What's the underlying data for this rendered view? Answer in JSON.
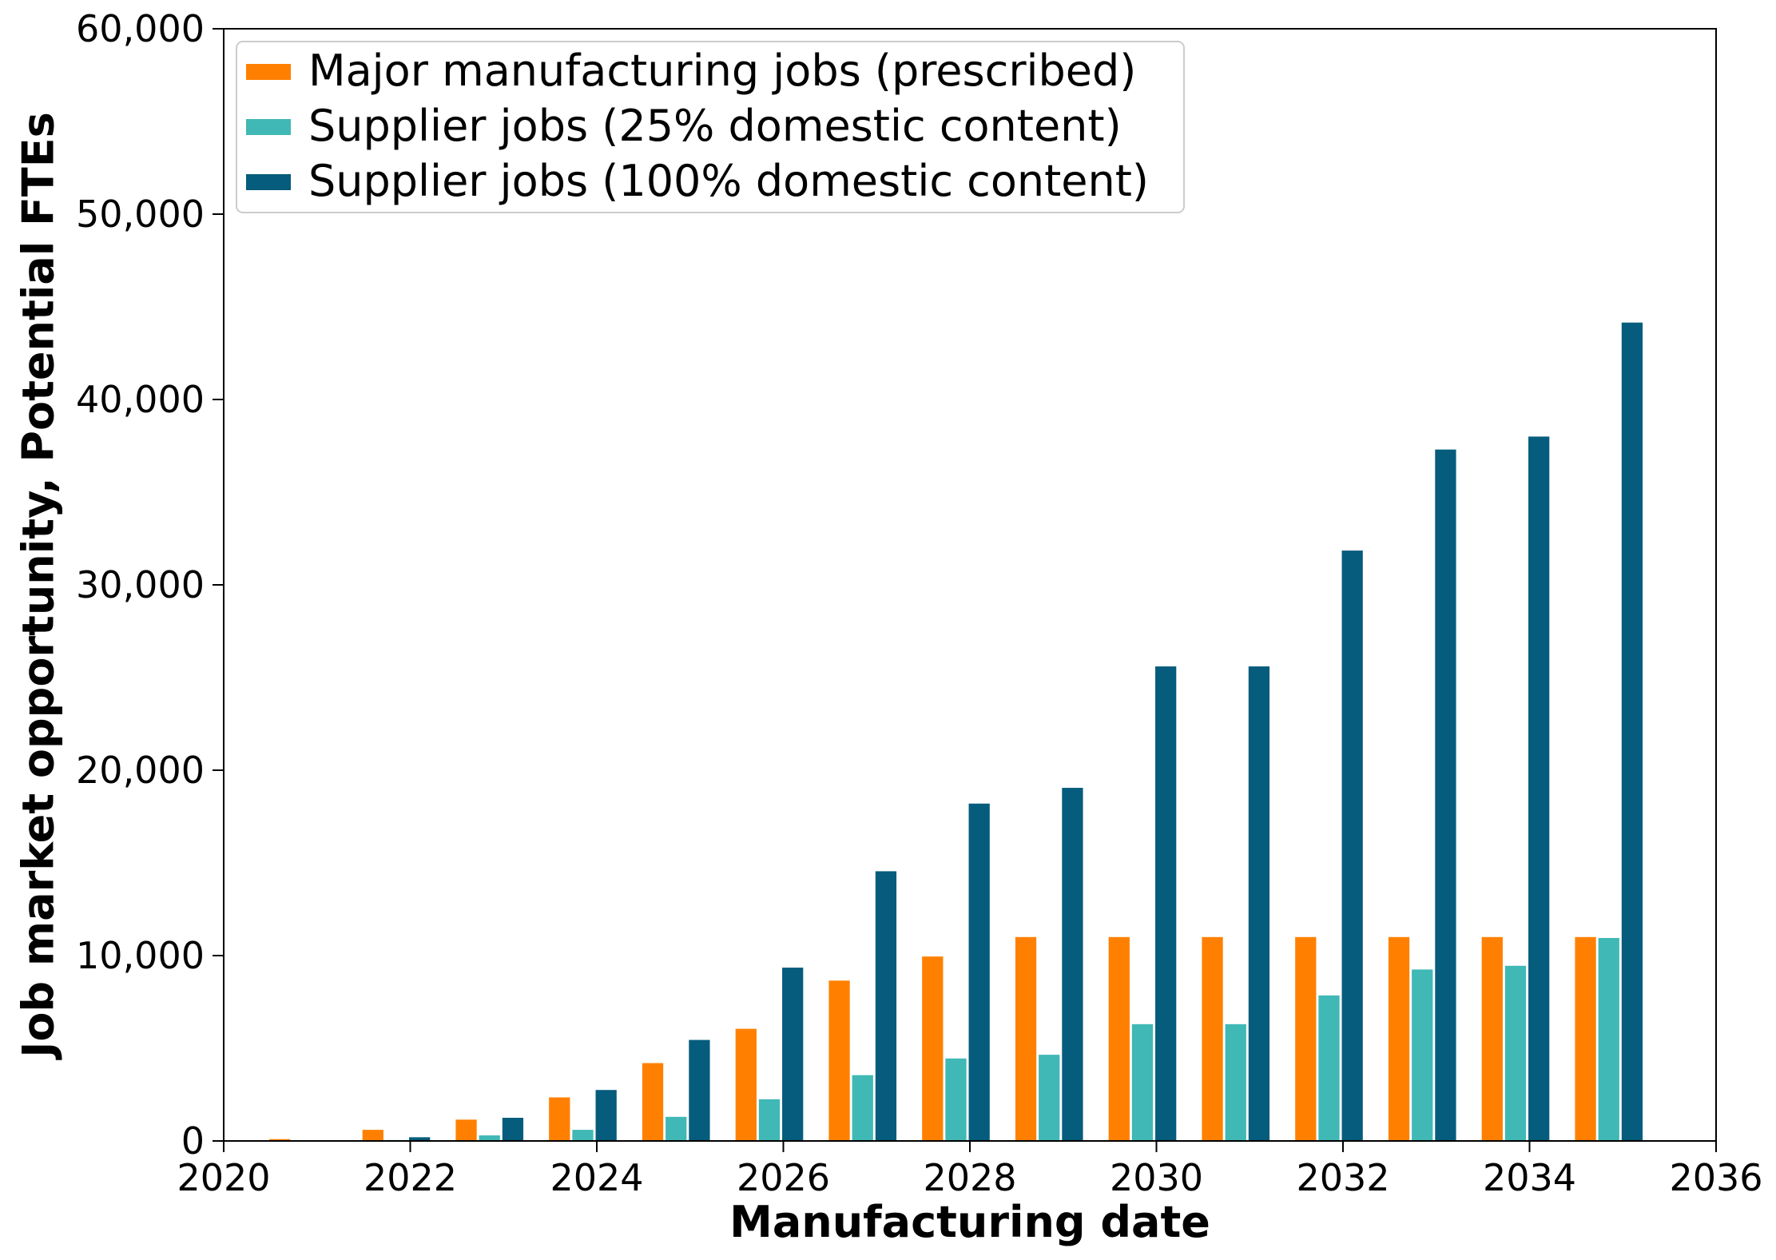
{
  "chart_data": {
    "type": "bar",
    "title": "",
    "xlabel": "Manufacturing date",
    "ylabel": "Job market opportunity, Potential FTEs",
    "xlim": [
      2020,
      2036
    ],
    "ylim": [
      0,
      60000
    ],
    "x_ticks": [
      2020,
      2022,
      2024,
      2026,
      2028,
      2030,
      2032,
      2034,
      2036
    ],
    "x_tick_labels": [
      "2020",
      "2022",
      "2024",
      "2026",
      "2028",
      "2030",
      "2032",
      "2034",
      "2036"
    ],
    "y_ticks": [
      0,
      10000,
      20000,
      30000,
      40000,
      50000,
      60000
    ],
    "y_tick_labels": [
      "0",
      "10,000",
      "20,000",
      "30,000",
      "40,000",
      "50,000",
      "60,000"
    ],
    "grid": false,
    "legend_position": "top-left",
    "x": [
      2021,
      2022,
      2023,
      2024,
      2025,
      2026,
      2027,
      2028,
      2029,
      2030,
      2031,
      2032,
      2033,
      2034,
      2035
    ],
    "series": [
      {
        "name": "Major manufacturing jobs (prescribed)",
        "color": "#ff8000",
        "values": [
          100,
          600,
          1150,
          2350,
          4200,
          6050,
          8650,
          9950,
          11000,
          11000,
          11000,
          11000,
          11000,
          11000,
          11000
        ]
      },
      {
        "name": "Supplier jobs (25% domestic content)",
        "color": "#40b8b5",
        "values": [
          0,
          50,
          300,
          600,
          1300,
          2250,
          3550,
          4450,
          4650,
          6300,
          6300,
          7850,
          9250,
          9450,
          10950
        ]
      },
      {
        "name": "Supplier jobs (100% domestic content)",
        "color": "#065c7c",
        "values": [
          0,
          200,
          1250,
          2750,
          5450,
          9350,
          14550,
          18200,
          19050,
          25600,
          25600,
          31850,
          37300,
          38000,
          44150
        ]
      }
    ]
  }
}
